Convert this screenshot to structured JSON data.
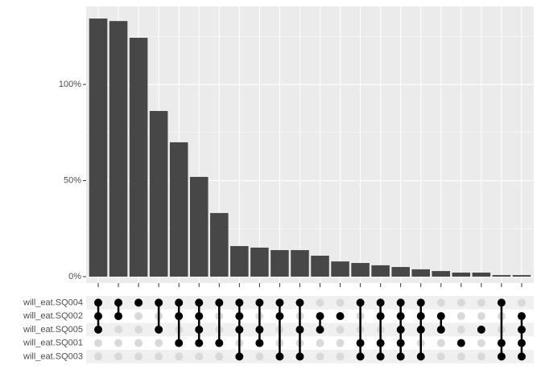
{
  "chart_data": {
    "type": "upset",
    "categories": [
      null,
      null,
      null,
      null,
      null,
      null,
      null,
      null,
      null,
      null,
      null,
      null,
      null,
      null,
      null,
      null,
      null,
      null,
      null,
      null,
      null,
      null
    ],
    "values": [
      134.3,
      133.0,
      124.3,
      86.2,
      69.9,
      51.9,
      33.1,
      15.9,
      15.1,
      13.8,
      13.8,
      10.9,
      7.9,
      7.1,
      5.9,
      5.0,
      3.8,
      2.9,
      2.1,
      2.1,
      0.8,
      0.8
    ],
    "color": "#474747",
    "ylim": [
      -3.35,
      140.6
    ],
    "yticks": [
      {
        "value": 0,
        "label": "0%"
      },
      {
        "value": 50,
        "label": "50%"
      },
      {
        "value": 100,
        "label": "100%"
      }
    ],
    "grid": true,
    "sets": [
      "will_eat.SQ004",
      "will_eat.SQ002",
      "will_eat.SQ005",
      "will_eat.SQ001",
      "will_eat.SQ003"
    ],
    "matrix": [
      [
        1,
        1,
        1,
        1,
        1,
        1,
        1,
        1,
        1,
        1,
        1,
        0,
        0,
        1,
        1,
        1,
        1,
        0,
        0,
        0,
        1,
        0
      ],
      [
        1,
        1,
        0,
        0,
        1,
        1,
        0,
        1,
        0,
        1,
        0,
        1,
        1,
        0,
        1,
        1,
        1,
        1,
        0,
        0,
        0,
        1
      ],
      [
        1,
        0,
        0,
        1,
        0,
        1,
        0,
        1,
        1,
        0,
        1,
        1,
        0,
        0,
        0,
        1,
        1,
        1,
        0,
        1,
        0,
        1
      ],
      [
        0,
        0,
        0,
        0,
        1,
        1,
        1,
        0,
        1,
        0,
        0,
        0,
        0,
        1,
        1,
        1,
        0,
        0,
        1,
        0,
        1,
        1
      ],
      [
        0,
        0,
        0,
        0,
        0,
        0,
        0,
        1,
        0,
        1,
        1,
        0,
        0,
        1,
        1,
        1,
        1,
        0,
        0,
        0,
        1,
        1
      ]
    ]
  }
}
